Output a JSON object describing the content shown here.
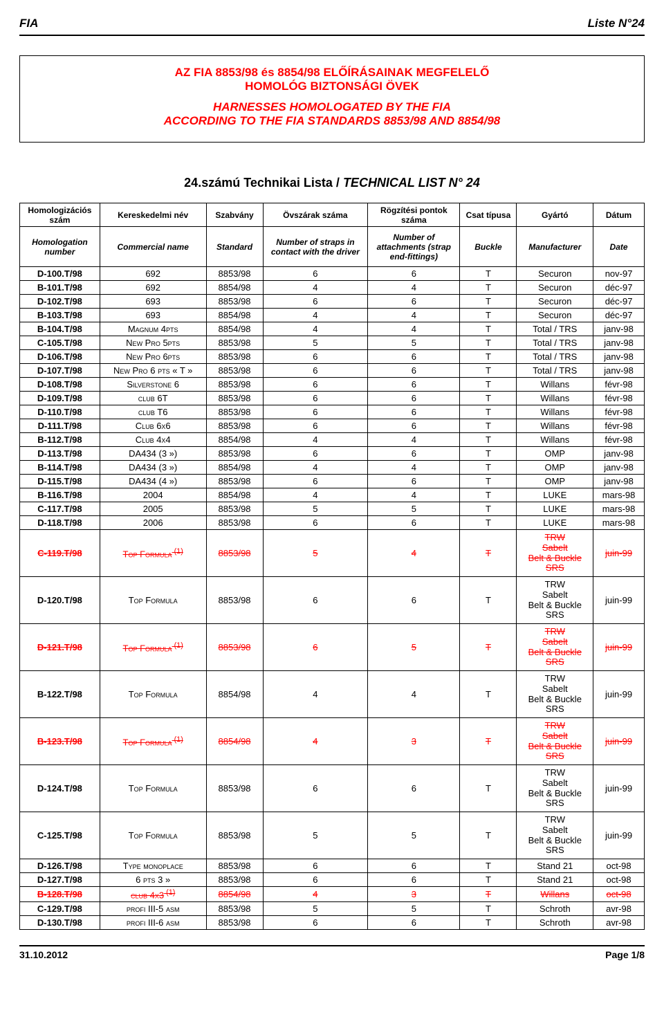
{
  "header": {
    "left": "FIA",
    "right": "Liste N°24"
  },
  "titleBox": {
    "l1": "AZ FIA 8853/98 és 8854/98 ELŐÍRÁSAINAK MEGFELELŐ",
    "l2": "HOMOLÓG BIZTONSÁGI ÖVEK",
    "l3": "HARNESSES HOMOLOGATED BY THE FIA",
    "l4": "ACCORDING TO THE FIA STANDARDS 8853/98 AND 8854/98"
  },
  "subtitle": {
    "plain": "24.számú Technikai Lista / ",
    "italic": "TECHNICAL LIST N° 24"
  },
  "headers": {
    "row1": [
      "Homologizációs szám",
      "Kereskedelmi név",
      "Szabvány",
      "Övszárak száma",
      "Rögzítési pontok száma",
      "Csat típusa",
      "Gyártó",
      "Dátum"
    ],
    "row2": [
      "Homologation number",
      "Commercial name",
      "Standard",
      "Number of straps in contact with the driver",
      "Number of attachments (strap end-fittings)",
      "Buckle",
      "Manufacturer",
      "Date"
    ]
  },
  "mfr_multi": "TRW\nSabelt\nBelt & Buckle\nSRS",
  "rows": [
    {
      "id": "D-100.T/98",
      "name": "692",
      "std": "8853/98",
      "s": "6",
      "a": "6",
      "b": "T",
      "m": "Securon",
      "d": "nov-97"
    },
    {
      "id": "B-101.T/98",
      "name": "692",
      "std": "8854/98",
      "s": "4",
      "a": "4",
      "b": "T",
      "m": "Securon",
      "d": "déc-97"
    },
    {
      "id": "D-102.T/98",
      "name": "693",
      "std": "8853/98",
      "s": "6",
      "a": "6",
      "b": "T",
      "m": "Securon",
      "d": "déc-97"
    },
    {
      "id": "B-103.T/98",
      "name": "693",
      "std": "8854/98",
      "s": "4",
      "a": "4",
      "b": "T",
      "m": "Securon",
      "d": "déc-97"
    },
    {
      "id": "B-104.T/98",
      "name": "Magnum 4pts",
      "std": "8854/98",
      "s": "4",
      "a": "4",
      "b": "T",
      "m": "Total / TRS",
      "d": "janv-98",
      "sc": true
    },
    {
      "id": "C-105.T/98",
      "name": "New Pro 5pts",
      "std": "8853/98",
      "s": "5",
      "a": "5",
      "b": "T",
      "m": "Total / TRS",
      "d": "janv-98",
      "sc": true
    },
    {
      "id": "D-106.T/98",
      "name": "New Pro 6pts",
      "std": "8853/98",
      "s": "6",
      "a": "6",
      "b": "T",
      "m": "Total / TRS",
      "d": "janv-98",
      "sc": true
    },
    {
      "id": "D-107.T/98",
      "name": "New Pro 6 pts « T »",
      "std": "8853/98",
      "s": "6",
      "a": "6",
      "b": "T",
      "m": "Total / TRS",
      "d": "janv-98",
      "sc": true
    },
    {
      "id": "D-108.T/98",
      "name": "Silverstone 6",
      "std": "8853/98",
      "s": "6",
      "a": "6",
      "b": "T",
      "m": "Willans",
      "d": "févr-98",
      "sc": true
    },
    {
      "id": "D-109.T/98",
      "name": "club 6T",
      "std": "8853/98",
      "s": "6",
      "a": "6",
      "b": "T",
      "m": "Willans",
      "d": "févr-98",
      "sc": true
    },
    {
      "id": "D-110.T/98",
      "name": "club T6",
      "std": "8853/98",
      "s": "6",
      "a": "6",
      "b": "T",
      "m": "Willans",
      "d": "févr-98",
      "sc": true
    },
    {
      "id": "D-111.T/98",
      "name": "Club 6x6",
      "std": "8853/98",
      "s": "6",
      "a": "6",
      "b": "T",
      "m": "Willans",
      "d": "févr-98",
      "sc": true
    },
    {
      "id": "B-112.T/98",
      "name": "Club 4x4",
      "std": "8854/98",
      "s": "4",
      "a": "4",
      "b": "T",
      "m": "Willans",
      "d": "févr-98",
      "sc": true
    },
    {
      "id": "D-113.T/98",
      "name": "DA434 (3 »)",
      "std": "8853/98",
      "s": "6",
      "a": "6",
      "b": "T",
      "m": "OMP",
      "d": "janv-98"
    },
    {
      "id": "B-114.T/98",
      "name": "DA434 (3 »)",
      "std": "8854/98",
      "s": "4",
      "a": "4",
      "b": "T",
      "m": "OMP",
      "d": "janv-98"
    },
    {
      "id": "D-115.T/98",
      "name": "DA434 (4 »)",
      "std": "8853/98",
      "s": "6",
      "a": "6",
      "b": "T",
      "m": "OMP",
      "d": "janv-98"
    },
    {
      "id": "B-116.T/98",
      "name": "2004",
      "std": "8854/98",
      "s": "4",
      "a": "4",
      "b": "T",
      "m": "LUKE",
      "d": "mars-98"
    },
    {
      "id": "C-117.T/98",
      "name": "2005",
      "std": "8853/98",
      "s": "5",
      "a": "5",
      "b": "T",
      "m": "LUKE",
      "d": "mars-98"
    },
    {
      "id": "D-118.T/98",
      "name": "2006",
      "std": "8853/98",
      "s": "6",
      "a": "6",
      "b": "T",
      "m": "LUKE",
      "d": "mars-98"
    },
    {
      "id": "C-119.T/98",
      "name": "Top Formula",
      "sup": "(1)",
      "std": "8853/98",
      "s": "5",
      "a": "4",
      "b": "T",
      "m": "@multi",
      "d": "juin-99",
      "strike": true,
      "sc": true,
      "tall": true
    },
    {
      "id": "D-120.T/98",
      "name": "Top Formula",
      "std": "8853/98",
      "s": "6",
      "a": "6",
      "b": "T",
      "m": "@multi",
      "d": "juin-99",
      "sc": true,
      "tall": true
    },
    {
      "id": "D-121.T/98",
      "name": "Top Formula",
      "sup": "(1)",
      "std": "8853/98",
      "s": "6",
      "a": "5",
      "b": "T",
      "m": "@multi",
      "d": "juin-99",
      "strike": true,
      "sc": true,
      "tall": true
    },
    {
      "id": "B-122.T/98",
      "name": "Top Formula",
      "std": "8854/98",
      "s": "4",
      "a": "4",
      "b": "T",
      "m": "@multi",
      "d": "juin-99",
      "sc": true,
      "tall": true
    },
    {
      "id": "B-123.T/98",
      "name": "Top Formula",
      "sup": "(1)",
      "std": "8854/98",
      "s": "4",
      "a": "3",
      "b": "T",
      "m": "@multi",
      "d": "juin-99",
      "strike": true,
      "sc": true,
      "tall": true
    },
    {
      "id": "D-124.T/98",
      "name": "Top Formula",
      "std": "8853/98",
      "s": "6",
      "a": "6",
      "b": "T",
      "m": "@multi",
      "d": "juin-99",
      "sc": true,
      "tall": true
    },
    {
      "id": "C-125.T/98",
      "name": "Top Formula",
      "std": "8853/98",
      "s": "5",
      "a": "5",
      "b": "T",
      "m": "@multi",
      "d": "juin-99",
      "sc": true,
      "tall": true
    },
    {
      "id": "D-126.T/98",
      "name": "Type monoplace",
      "std": "8853/98",
      "s": "6",
      "a": "6",
      "b": "T",
      "m": "Stand 21",
      "d": "oct-98",
      "sc": true
    },
    {
      "id": "D-127.T/98",
      "name": "6 pts 3 »",
      "std": "8853/98",
      "s": "6",
      "a": "6",
      "b": "T",
      "m": "Stand 21",
      "d": "oct-98",
      "sc": true
    },
    {
      "id": "B-128.T/98",
      "name": "club 4x3",
      "sup": "(1)",
      "std": "8854/98",
      "s": "4",
      "a": "3",
      "b": "T",
      "m": "Willans",
      "d": "oct-98",
      "strike": true,
      "sc": true
    },
    {
      "id": "C-129.T/98",
      "name": "profi III-5 asm",
      "std": "8853/98",
      "s": "5",
      "a": "5",
      "b": "T",
      "m": "Schroth",
      "d": "avr-98",
      "sc": true
    },
    {
      "id": "D-130.T/98",
      "name": "profi III-6 asm",
      "std": "8853/98",
      "s": "6",
      "a": "6",
      "b": "T",
      "m": "Schroth",
      "d": "avr-98",
      "sc": true
    }
  ],
  "footer": {
    "left": "31.10.2012",
    "right": "Page 1/8"
  },
  "colors": {
    "accent": "#ff0000",
    "text": "#000000",
    "bg": "#ffffff"
  }
}
